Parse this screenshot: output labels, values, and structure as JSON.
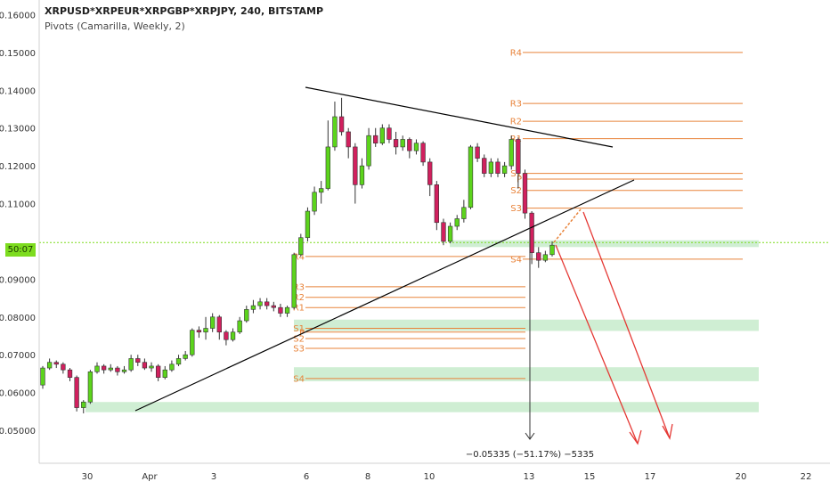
{
  "header": {
    "title": "XRPUSD*XRPEUR*XRPGBP*XRPJPY, 240, BITSTAMP",
    "indicator": "Pivots (Camarilla, Weekly, 2)"
  },
  "price_badge": "50:07",
  "measure_label": "−0.05335 (−51.17%) −5335",
  "colors": {
    "pivot": "#e8833a",
    "up": "#5cd41c",
    "down": "#d1205e",
    "zone": "#cfeed3",
    "trend": "#000000",
    "projection": "#e53935",
    "current_price_line": "#7ddc1f"
  },
  "chart_data": {
    "type": "candlestick",
    "title": "XRPUSD*XRPEUR*XRPGBP*XRPJPY, 240, BITSTAMP",
    "ylim": [
      0.046,
      0.162
    ],
    "y_ticks": [
      "0.16000",
      "0.15000",
      "0.14000",
      "0.13000",
      "0.12000",
      "0.11000",
      "0.09000",
      "0.08000",
      "0.07000",
      "0.06000",
      "0.05000"
    ],
    "x_ticks": [
      "30",
      "Apr",
      "3",
      "6",
      "8",
      "10",
      "13",
      "15",
      "17",
      "20",
      "22"
    ],
    "pivot_levels": {
      "week1": [
        {
          "label": "R4",
          "value": 0.096
        },
        {
          "label": "R3",
          "value": 0.088
        },
        {
          "label": "R2",
          "value": 0.0852
        },
        {
          "label": "R1",
          "value": 0.0825
        },
        {
          "label": "S1",
          "value": 0.077
        },
        {
          "label": "P",
          "value": 0.076
        },
        {
          "label": "S2",
          "value": 0.0743
        },
        {
          "label": "S3",
          "value": 0.0717
        },
        {
          "label": "S4",
          "value": 0.0637
        }
      ],
      "week2": [
        {
          "label": "R4",
          "value": 0.15
        },
        {
          "label": "R3",
          "value": 0.1365
        },
        {
          "label": "R2",
          "value": 0.1318
        },
        {
          "label": "R1",
          "value": 0.1272
        },
        {
          "label": "S1",
          "value": 0.118
        },
        {
          "label": "P",
          "value": 0.1165
        },
        {
          "label": "S2",
          "value": 0.1135
        },
        {
          "label": "S3",
          "value": 0.1088
        },
        {
          "label": "S4",
          "value": 0.0953
        }
      ]
    },
    "support_zones": [
      {
        "from": 0.0985,
        "to": 0.1003
      },
      {
        "from": 0.0763,
        "to": 0.0793
      },
      {
        "from": 0.063,
        "to": 0.0667
      },
      {
        "from": 0.0548,
        "to": 0.0575
      }
    ],
    "candles": [
      [
        0.062,
        0.0665,
        0.061,
        0.067
      ],
      [
        0.0665,
        0.068,
        0.066,
        0.069
      ],
      [
        0.068,
        0.0675,
        0.0665,
        0.0685
      ],
      [
        0.0675,
        0.066,
        0.065,
        0.068
      ],
      [
        0.066,
        0.064,
        0.063,
        0.0665
      ],
      [
        0.064,
        0.056,
        0.055,
        0.0645
      ],
      [
        0.056,
        0.0575,
        0.0545,
        0.058
      ],
      [
        0.0575,
        0.0655,
        0.057,
        0.066
      ],
      [
        0.0655,
        0.067,
        0.065,
        0.068
      ],
      [
        0.067,
        0.066,
        0.065,
        0.0675
      ],
      [
        0.066,
        0.0665,
        0.0655,
        0.0675
      ],
      [
        0.0665,
        0.0655,
        0.0645,
        0.067
      ],
      [
        0.0655,
        0.066,
        0.065,
        0.067
      ],
      [
        0.066,
        0.069,
        0.0655,
        0.07
      ],
      [
        0.069,
        0.068,
        0.067,
        0.07
      ],
      [
        0.068,
        0.0665,
        0.066,
        0.069
      ],
      [
        0.0665,
        0.067,
        0.0655,
        0.068
      ],
      [
        0.067,
        0.064,
        0.063,
        0.0675
      ],
      [
        0.064,
        0.066,
        0.0635,
        0.067
      ],
      [
        0.066,
        0.0675,
        0.0655,
        0.0685
      ],
      [
        0.0675,
        0.069,
        0.067,
        0.07
      ],
      [
        0.069,
        0.07,
        0.0685,
        0.071
      ],
      [
        0.07,
        0.0765,
        0.0695,
        0.077
      ],
      [
        0.0765,
        0.076,
        0.0745,
        0.0775
      ],
      [
        0.076,
        0.077,
        0.074,
        0.08
      ],
      [
        0.077,
        0.08,
        0.076,
        0.081
      ],
      [
        0.08,
        0.076,
        0.074,
        0.0805
      ],
      [
        0.076,
        0.074,
        0.0725,
        0.0765
      ],
      [
        0.074,
        0.076,
        0.0735,
        0.077
      ],
      [
        0.076,
        0.079,
        0.0755,
        0.08
      ],
      [
        0.079,
        0.082,
        0.0785,
        0.083
      ],
      [
        0.082,
        0.083,
        0.081,
        0.0845
      ],
      [
        0.083,
        0.084,
        0.082,
        0.085
      ],
      [
        0.084,
        0.083,
        0.082,
        0.085
      ],
      [
        0.083,
        0.0825,
        0.0815,
        0.084
      ],
      [
        0.0825,
        0.081,
        0.08,
        0.0835
      ],
      [
        0.081,
        0.0825,
        0.08,
        0.083
      ],
      [
        0.0825,
        0.0965,
        0.082,
        0.097
      ],
      [
        0.0965,
        0.101,
        0.096,
        0.102
      ],
      [
        0.101,
        0.108,
        0.1,
        0.109
      ],
      [
        0.108,
        0.113,
        0.107,
        0.1145
      ],
      [
        0.113,
        0.114,
        0.11,
        0.116
      ],
      [
        0.114,
        0.125,
        0.1135,
        0.132
      ],
      [
        0.125,
        0.133,
        0.124,
        0.137
      ],
      [
        0.133,
        0.129,
        0.128,
        0.138
      ],
      [
        0.129,
        0.125,
        0.122,
        0.13
      ],
      [
        0.125,
        0.115,
        0.11,
        0.126
      ],
      [
        0.115,
        0.12,
        0.114,
        0.122
      ],
      [
        0.12,
        0.128,
        0.119,
        0.13
      ],
      [
        0.128,
        0.126,
        0.125,
        0.13
      ],
      [
        0.126,
        0.13,
        0.1255,
        0.131
      ],
      [
        0.13,
        0.127,
        0.126,
        0.131
      ],
      [
        0.127,
        0.125,
        0.123,
        0.129
      ],
      [
        0.125,
        0.127,
        0.124,
        0.128
      ],
      [
        0.127,
        0.124,
        0.122,
        0.1275
      ],
      [
        0.124,
        0.126,
        0.123,
        0.127
      ],
      [
        0.126,
        0.121,
        0.12,
        0.1265
      ],
      [
        0.121,
        0.115,
        0.112,
        0.122
      ],
      [
        0.115,
        0.105,
        0.103,
        0.116
      ],
      [
        0.105,
        0.1,
        0.099,
        0.106
      ],
      [
        0.1,
        0.104,
        0.0995,
        0.105
      ],
      [
        0.104,
        0.106,
        0.103,
        0.107
      ],
      [
        0.106,
        0.109,
        0.105,
        0.111
      ],
      [
        0.109,
        0.125,
        0.1085,
        0.1255
      ],
      [
        0.125,
        0.122,
        0.121,
        0.126
      ],
      [
        0.122,
        0.118,
        0.117,
        0.123
      ],
      [
        0.118,
        0.121,
        0.117,
        0.122
      ],
      [
        0.121,
        0.118,
        0.117,
        0.122
      ],
      [
        0.118,
        0.12,
        0.117,
        0.121
      ],
      [
        0.12,
        0.127,
        0.119,
        0.128
      ],
      [
        0.127,
        0.118,
        0.114,
        0.1275
      ],
      [
        0.118,
        0.1075,
        0.106,
        0.119
      ],
      [
        0.1075,
        0.097,
        0.094,
        0.108
      ],
      [
        0.097,
        0.095,
        0.093,
        0.0985
      ],
      [
        0.095,
        0.0965,
        0.0945,
        0.0975
      ],
      [
        0.0965,
        0.099,
        0.096,
        0.1
      ]
    ]
  }
}
